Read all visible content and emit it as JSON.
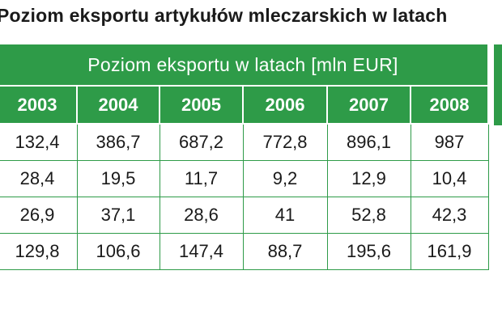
{
  "title": "Poziom eksportu artykułów mleczarskich w latach",
  "header": {
    "band": "Poziom eksportu w latach [mln EUR]",
    "years": [
      "2003",
      "2004",
      "2005",
      "2006",
      "2007",
      "2008"
    ]
  },
  "rows": [
    [
      "132,4",
      "386,7",
      "687,2",
      "772,8",
      "896,1",
      "987"
    ],
    [
      "28,4",
      "19,5",
      "11,7",
      "9,2",
      "12,9",
      "10,4"
    ],
    [
      "26,9",
      "37,1",
      "28,6",
      "41",
      "52,8",
      "42,3"
    ],
    [
      "129,8",
      "106,6",
      "147,4",
      "88,7",
      "195,6",
      "161,9"
    ]
  ],
  "colors": {
    "header_green": "#2e9b48",
    "text": "#1a1a1a"
  }
}
